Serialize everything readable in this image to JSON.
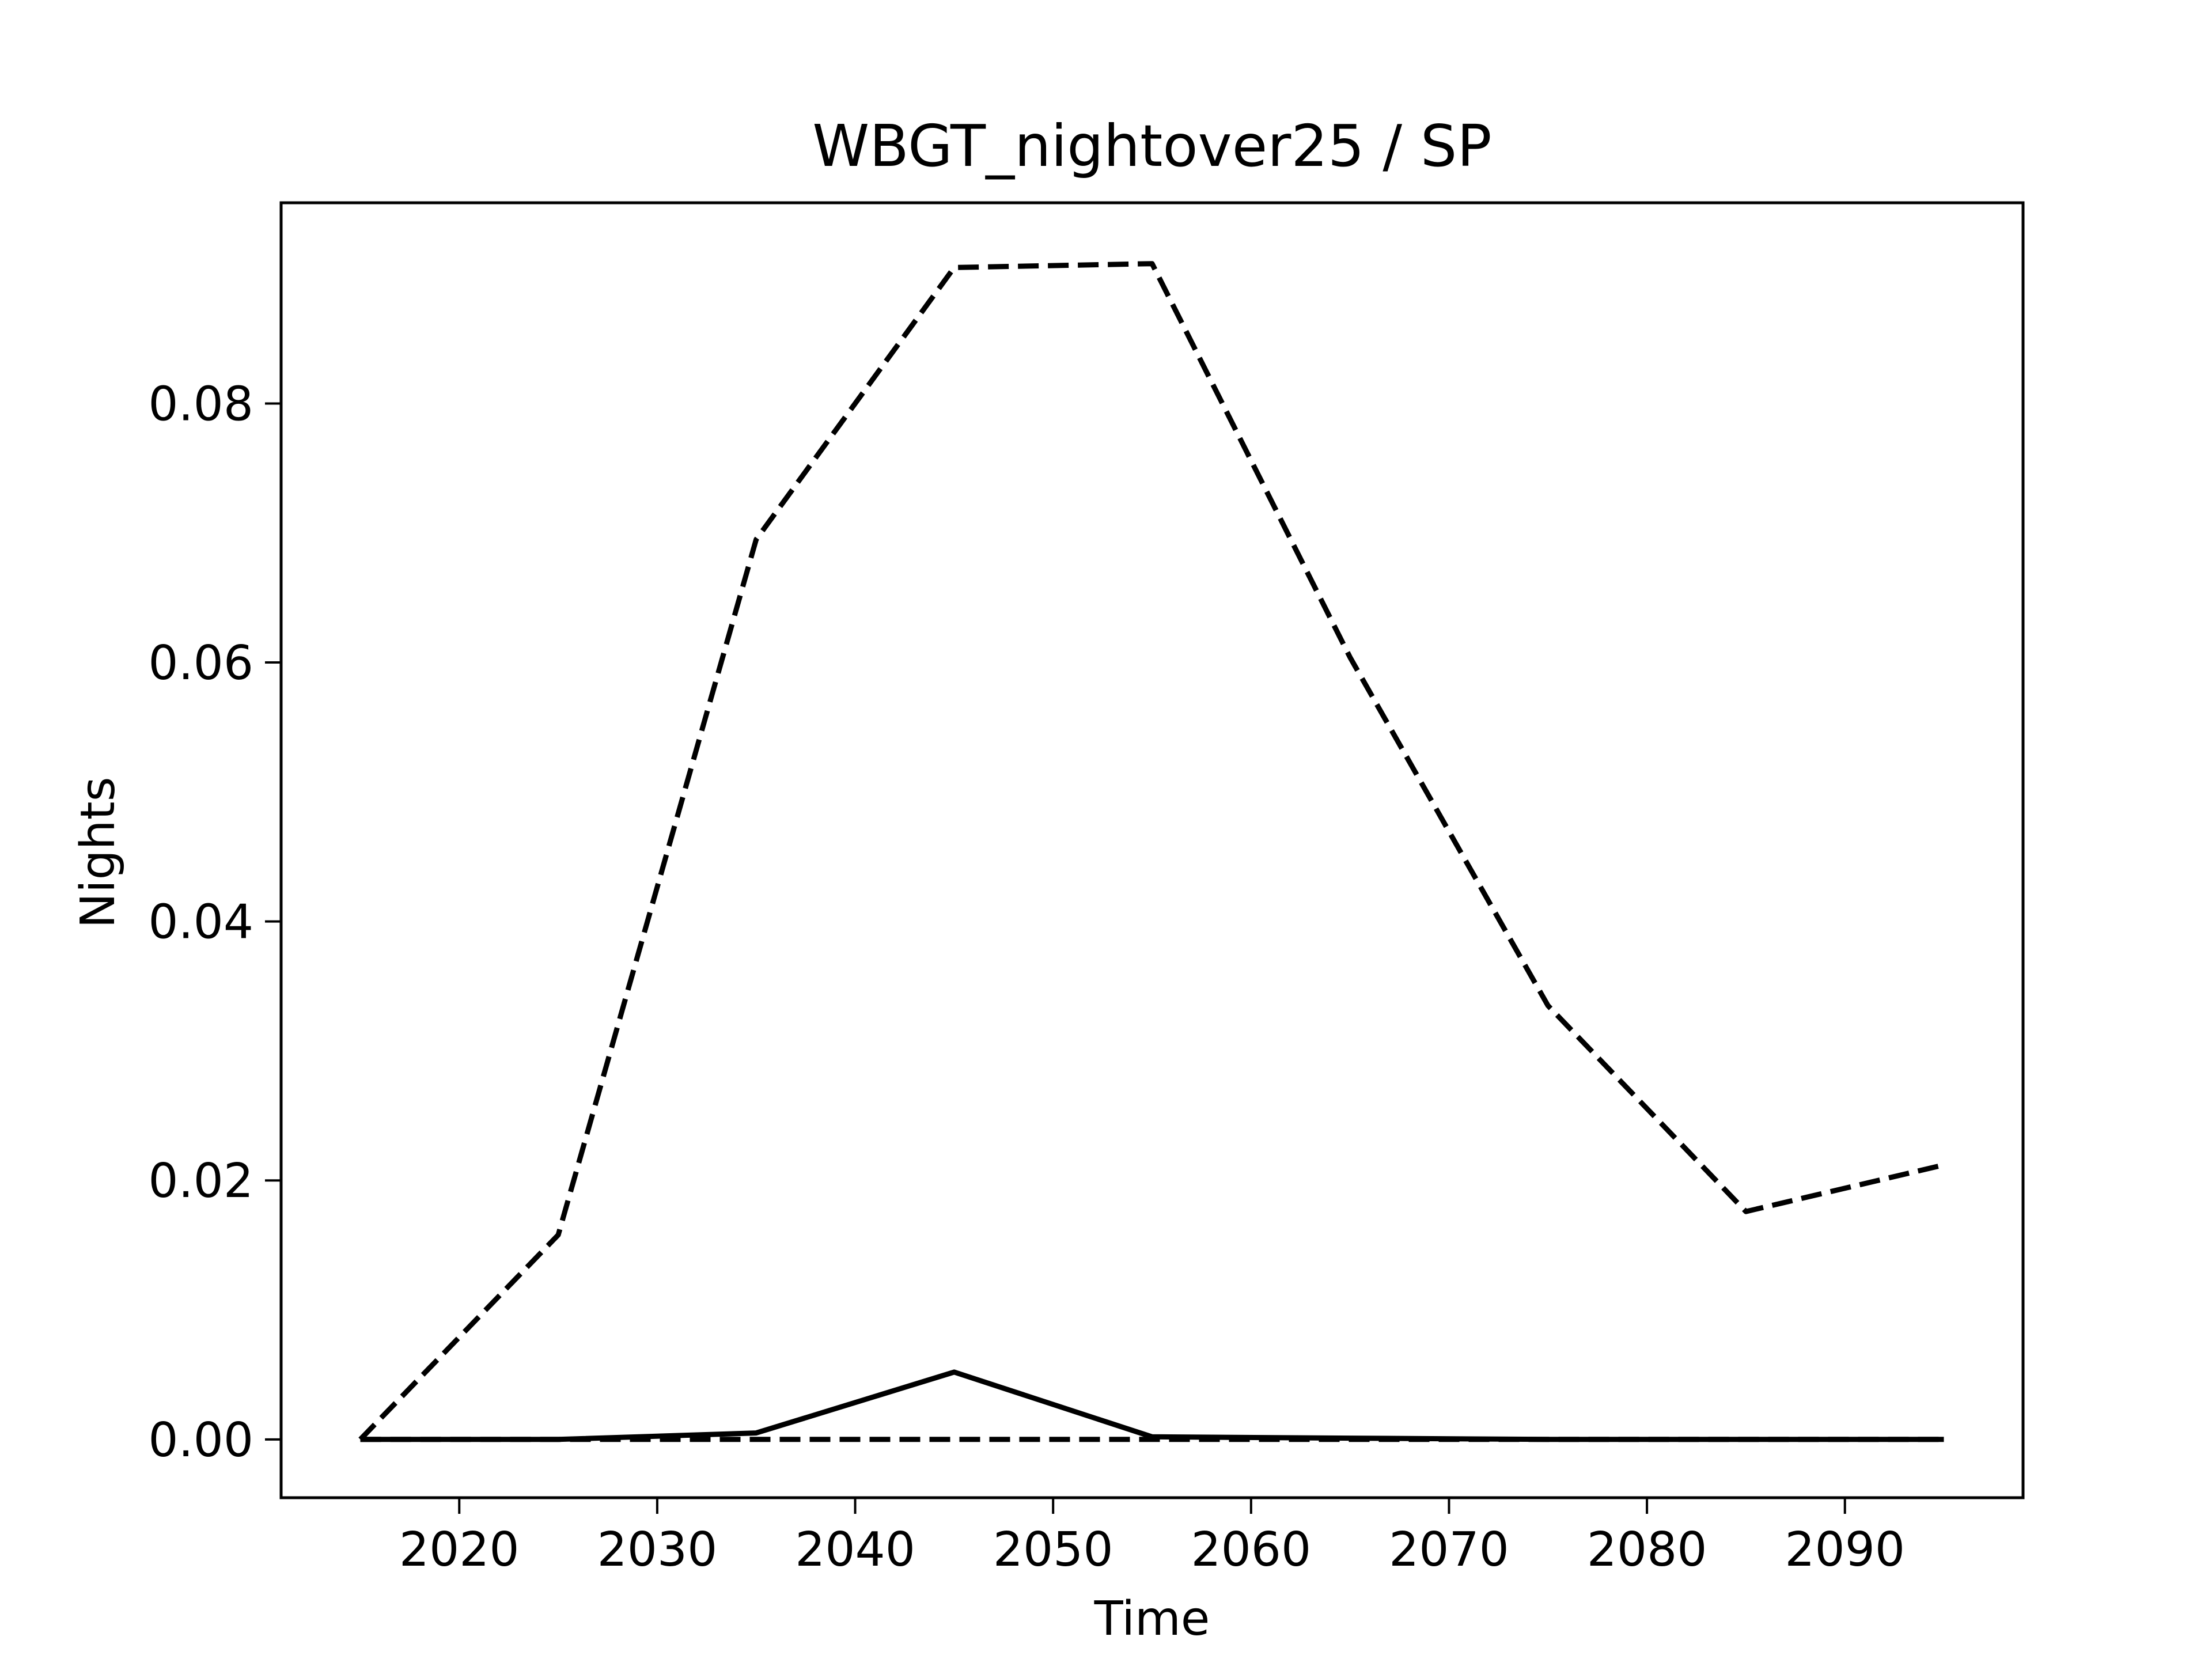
{
  "chart_data": {
    "type": "line",
    "title": "WBGT_nightover25 / SP",
    "xlabel": "Time",
    "ylabel": "Nights",
    "xlim": [
      2011,
      2099
    ],
    "ylim": [
      -0.0045,
      0.0955
    ],
    "x_ticks": [
      2020,
      2030,
      2040,
      2050,
      2060,
      2070,
      2080,
      2090
    ],
    "y_ticks": [
      0.0,
      0.02,
      0.04,
      0.06,
      0.08
    ],
    "y_tick_labels": [
      "0.00",
      "0.02",
      "0.04",
      "0.06",
      "0.08"
    ],
    "grid": false,
    "x": [
      2015,
      2025,
      2035,
      2045,
      2055,
      2065,
      2075,
      2085,
      2095
    ],
    "series": [
      {
        "style": "dashed",
        "color": "#000000",
        "values": [
          0.0,
          0.0158,
          0.0695,
          0.0905,
          0.0908,
          0.0604,
          0.0335,
          0.0176,
          0.0212
        ]
      },
      {
        "style": "solid",
        "color": "#000000",
        "values": [
          0.0,
          0.0,
          0.0005,
          0.0052,
          0.0002,
          0.0001,
          0.0,
          0.0,
          0.0
        ]
      },
      {
        "style": "dashed",
        "color": "#000000",
        "values": [
          0.0,
          0.0,
          0.0,
          0.0,
          0.0,
          0.0,
          0.0,
          0.0,
          0.0
        ]
      }
    ]
  }
}
